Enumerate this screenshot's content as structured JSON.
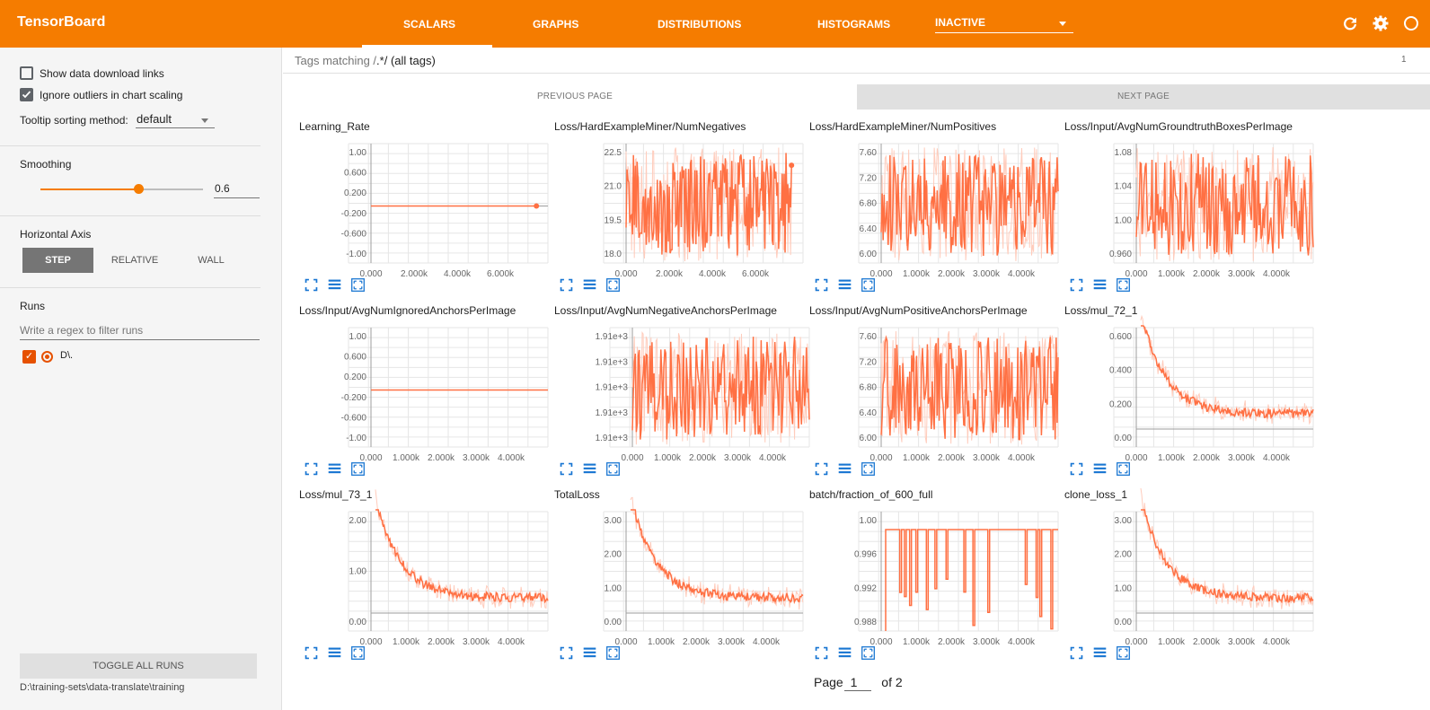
{
  "app": {
    "title": "TensorBoard"
  },
  "tabs": [
    {
      "label": "SCALARS",
      "active": true
    },
    {
      "label": "GRAPHS"
    },
    {
      "label": "DISTRIBUTIONS"
    },
    {
      "label": "HISTOGRAMS"
    }
  ],
  "inactive_select": {
    "value": "INACTIVE"
  },
  "top_icons": [
    "refresh-icon",
    "settings-icon",
    "help-icon"
  ],
  "sidebar": {
    "show_data_download_links": "Show data download links",
    "ignore_outliers": "Ignore outliers in chart scaling",
    "tooltip_label": "Tooltip sorting method:",
    "tooltip_value": "default",
    "smoothing_label": "Smoothing",
    "smoothing_value": "0.6",
    "smoothing_level": 0.6,
    "horizontal_axis_label": "Horizontal Axis",
    "axis_buttons": [
      "STEP",
      "RELATIVE",
      "WALL"
    ],
    "runs_label": "Runs",
    "runs_filter_placeholder": "Write a regex to filter runs",
    "runs": [
      {
        "name": "D\\."
      }
    ],
    "toggle_all_runs": "TOGGLE ALL RUNS",
    "path": "D:\\training-sets\\data-translate\\training"
  },
  "main": {
    "filter_prefix": "Tags matching /",
    "filter_regex": ".*",
    "filter_suffix": "/ (all tags)",
    "page_right": "1",
    "previous_page": "PREVIOUS PAGE",
    "next_page": "NEXT PAGE",
    "page_label": "Page",
    "page_value": "1",
    "page_of": "of 2"
  },
  "colors": {
    "accent": "#f57c00",
    "line": "#ff7043",
    "line_faint": "#ffccbc"
  },
  "chart_data": [
    {
      "title": "Learning_Rate",
      "type": "line",
      "x_ticks": [
        "0.000",
        "2.000k",
        "4.000k",
        "6.000k"
      ],
      "y_ticks": [
        "1.00",
        "0.600",
        "0.200",
        "-0.200",
        "-0.600",
        "-1.00"
      ],
      "shape": "flat",
      "end_point": true
    },
    {
      "title": "Loss/HardExampleMiner/NumNegatives",
      "type": "line",
      "x_ticks": [
        "0.000",
        "2.000k",
        "4.000k",
        "6.000k"
      ],
      "y_ticks": [
        "22.5",
        "21.0",
        "19.5",
        "18.0"
      ],
      "shape": "noisy",
      "end_point": true
    },
    {
      "title": "Loss/HardExampleMiner/NumPositives",
      "type": "line",
      "x_ticks": [
        "0.000",
        "1.000k",
        "2.000k",
        "3.000k",
        "4.000k"
      ],
      "y_ticks": [
        "7.60",
        "7.20",
        "6.80",
        "6.40",
        "6.00"
      ],
      "shape": "noisy"
    },
    {
      "title": "Loss/Input/AvgNumGroundtruthBoxesPerImage",
      "type": "line",
      "x_ticks": [
        "0.000",
        "1.000k",
        "2.000k",
        "3.000k",
        "4.000k"
      ],
      "y_ticks": [
        "1.08",
        "1.04",
        "1.00",
        "0.960"
      ],
      "shape": "noisy"
    },
    {
      "title": "Loss/Input/AvgNumIgnoredAnchorsPerImage",
      "type": "line",
      "x_ticks": [
        "0.000",
        "1.000k",
        "2.000k",
        "3.000k",
        "4.000k"
      ],
      "y_ticks": [
        "1.00",
        "0.600",
        "0.200",
        "-0.200",
        "-0.600",
        "-1.00"
      ],
      "shape": "flat"
    },
    {
      "title": "Loss/Input/AvgNumNegativeAnchorsPerImage",
      "type": "line",
      "x_ticks": [
        "0.000",
        "1.000k",
        "2.000k",
        "3.000k",
        "4.000k"
      ],
      "y_ticks": [
        "1.91e+3",
        "1.91e+3",
        "1.91e+3",
        "1.91e+3",
        "1.91e+3"
      ],
      "shape": "noisy"
    },
    {
      "title": "Loss/Input/AvgNumPositiveAnchorsPerImage",
      "type": "line",
      "x_ticks": [
        "0.000",
        "1.000k",
        "2.000k",
        "3.000k",
        "4.000k"
      ],
      "y_ticks": [
        "7.60",
        "7.20",
        "6.80",
        "6.40",
        "6.00"
      ],
      "shape": "noisy"
    },
    {
      "title": "Loss/mul_72_1",
      "type": "line",
      "x_ticks": [
        "0.000",
        "1.000k",
        "2.000k",
        "3.000k",
        "4.000k"
      ],
      "y_ticks": [
        "0.600",
        "0.400",
        "0.200",
        "0.00"
      ],
      "shape": "decay"
    },
    {
      "title": "Loss/mul_73_1",
      "type": "line",
      "x_ticks": [
        "0.000",
        "1.000k",
        "2.000k",
        "3.000k",
        "4.000k"
      ],
      "y_ticks": [
        "2.00",
        "1.00",
        "0.00"
      ],
      "shape": "decay"
    },
    {
      "title": "TotalLoss",
      "type": "line",
      "x_ticks": [
        "0.000",
        "1.000k",
        "2.000k",
        "3.000k",
        "4.000k"
      ],
      "y_ticks": [
        "3.00",
        "2.00",
        "1.00",
        "0.00"
      ],
      "shape": "decay"
    },
    {
      "title": "batch/fraction_of_600_full",
      "type": "line",
      "x_ticks": [
        "0.000",
        "1.000k",
        "2.000k",
        "3.000k",
        "4.000k"
      ],
      "y_ticks": [
        "1.00",
        "0.996",
        "0.992",
        "0.988"
      ],
      "shape": "step"
    },
    {
      "title": "clone_loss_1",
      "type": "line",
      "x_ticks": [
        "0.000",
        "1.000k",
        "2.000k",
        "3.000k",
        "4.000k"
      ],
      "y_ticks": [
        "3.00",
        "2.00",
        "1.00",
        "0.00"
      ],
      "shape": "decay"
    }
  ]
}
